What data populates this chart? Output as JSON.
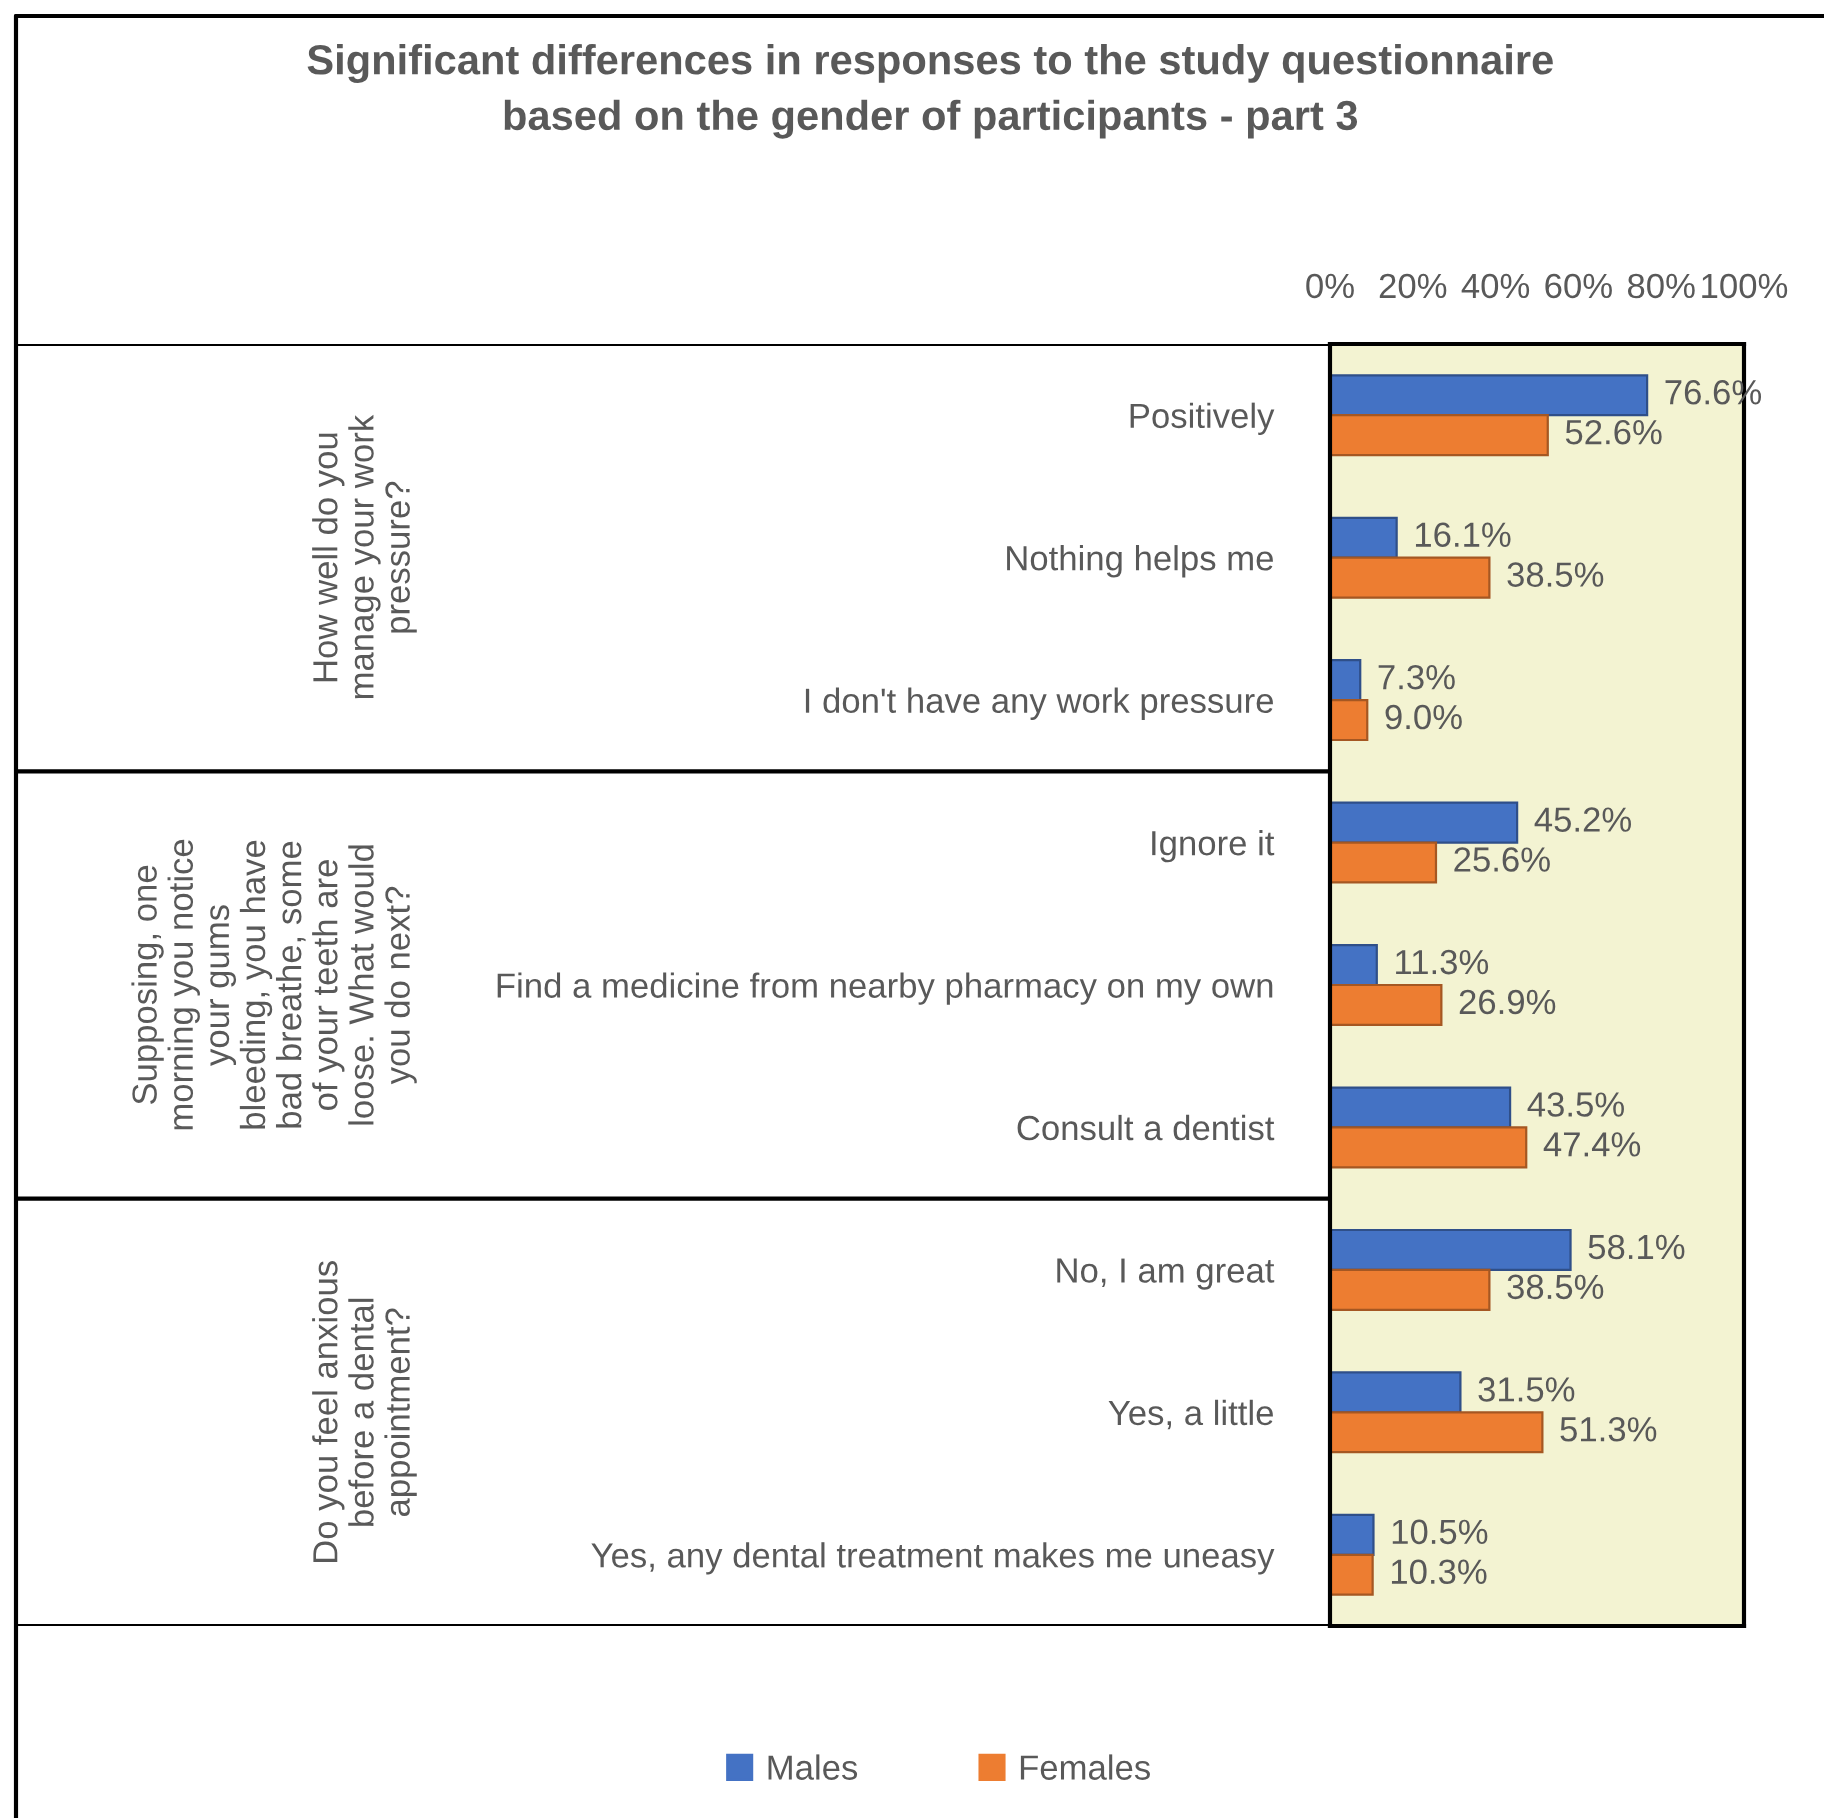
{
  "chart_data": {
    "type": "bar",
    "orientation": "horizontal",
    "title": "Significant differences in responses to the study questionnaire\nbased on the gender of participants - part 3",
    "categories": [
      "Positively",
      "Nothing helps me",
      "I don't have any work pressure",
      "Ignore it",
      "Find a medicine from nearby pharmacy on my own",
      "Consult a dentist",
      "No, I am great",
      "Yes, a little",
      "Yes, any dental treatment makes me uneasy"
    ],
    "series": [
      {
        "name": "Males",
        "color": "#4472c4",
        "values": [
          76.6,
          16.1,
          7.3,
          45.2,
          11.3,
          43.5,
          58.1,
          31.5,
          10.5
        ],
        "value_labels": [
          "76.6%",
          "16.1%",
          "7.3%",
          "45.2%",
          "11.3%",
          "43.5%",
          "58.1%",
          "31.5%",
          "10.5%"
        ]
      },
      {
        "name": "Females",
        "color": "#ed7d31",
        "values": [
          52.6,
          38.5,
          9.0,
          25.6,
          26.9,
          47.4,
          38.5,
          51.3,
          10.3
        ],
        "value_labels": [
          "52.6%",
          "38.5%",
          "9.0%",
          "25.6%",
          "26.9%",
          "47.4%",
          "38.5%",
          "51.3%",
          "10.3%"
        ]
      }
    ],
    "xlim": [
      0,
      100
    ],
    "xticks": [
      {
        "value": 0,
        "label": "0%"
      },
      {
        "value": 20,
        "label": "20%"
      },
      {
        "value": 40,
        "label": "40%"
      },
      {
        "value": 60,
        "label": "60%"
      },
      {
        "value": 80,
        "label": "80%"
      },
      {
        "value": 100,
        "label": "100%"
      }
    ],
    "annotations": [
      "How well do you\nmanage your work\npressure?",
      "Supposing, one\nmorning you notice\nyour gums\nbleeding, you have\nbad breathe, some\nof your teeth are\nloose. What would\nyou do next?",
      "Do you feel anxious\nbefore a dental\nappointment?"
    ],
    "legend": "bottom"
  }
}
